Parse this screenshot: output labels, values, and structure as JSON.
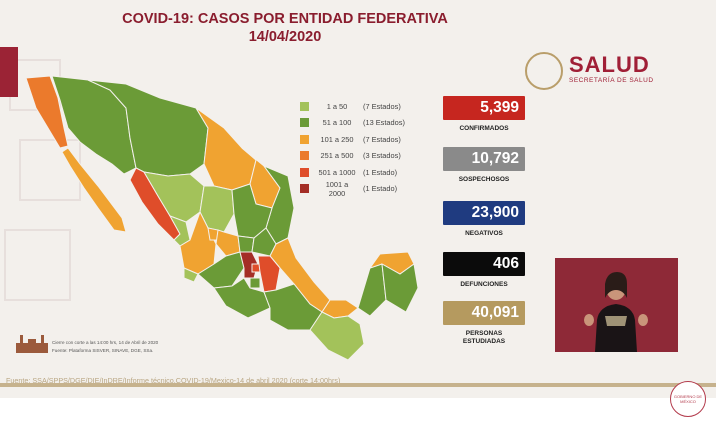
{
  "title": {
    "line1": "COVID-19: CASOS POR ENTIDAD FEDERATIVA",
    "line2": "14/04/2020"
  },
  "logo": {
    "name": "SALUD",
    "subtitle": "SECRETARÍA DE SALUD"
  },
  "legend": [
    {
      "range": "1 a 50",
      "count": "(7 Estados)",
      "color": "#a3c25a"
    },
    {
      "range": "51 a 100",
      "count": "(13 Estados)",
      "color": "#6b9b37"
    },
    {
      "range": "101 a 250",
      "count": "(7 Estados)",
      "color": "#f0a331"
    },
    {
      "range": "251 a 500",
      "count": "(3 Estados)",
      "color": "#eb7a2c"
    },
    {
      "range": "501 a 1000",
      "count": "(1 Estado)",
      "color": "#df4d2a"
    },
    {
      "range": "1001 a 2000",
      "count": "(1 Estado)",
      "color": "#a42e26"
    }
  ],
  "stats": [
    {
      "value": "5,399",
      "label": "CONFIRMADOS",
      "color": "#c6261f"
    },
    {
      "value": "10,792",
      "label": "SOSPECHOSOS",
      "color": "#8a8a8a"
    },
    {
      "value": "23,900",
      "label": "NEGATIVOS",
      "color": "#1f3b80"
    },
    {
      "value": "406",
      "label": "DEFUNCIONES",
      "color": "#0b0b0b"
    },
    {
      "value": "40,091",
      "label": "PERSONAS ESTUDIADAS",
      "color": "#b59a5f"
    }
  ],
  "source_note": {
    "line1": "Cierre con corte a las 14:00 hrs, 14 de Abril de 2020",
    "line2": "Fuente: Plataforma SISVER, SINAVE, DGE, SSa."
  },
  "footer": {
    "fuente": "Fuente: SSA/SPPS/DGE/DIE/InDRE/Informe técnico.COVID-19/Mexico-14 de abril 2020 (corte 14:00hrs)"
  },
  "bottom_logo": {
    "text": "GOBIERNO DE MÉXICO"
  },
  "map_state_colors": {
    "green1": "#a3c25a",
    "green2": "#6b9b37",
    "orange": "#f0a331",
    "dark_orange": "#eb7a2c",
    "red": "#df4d2a",
    "dark_red": "#a42e26"
  }
}
